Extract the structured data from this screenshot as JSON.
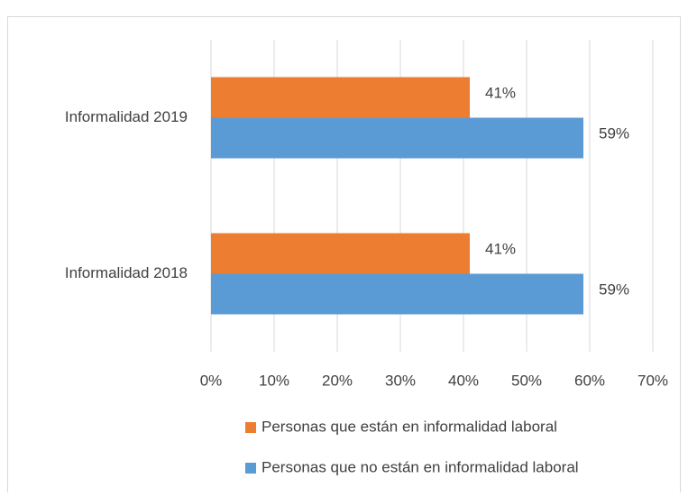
{
  "chart_data": {
    "type": "hbar",
    "categories": [
      "Informalidad 2019",
      "Informalidad 2018"
    ],
    "series": [
      {
        "name": "Personas que están en informalidad laboral",
        "color": "#ed7d31",
        "values": [
          41,
          41
        ],
        "value_labels": [
          "41%",
          "41%"
        ]
      },
      {
        "name": "Personas que no están en informalidad laboral",
        "color": "#5b9bd5",
        "values": [
          59,
          59
        ],
        "value_labels": [
          "59%",
          "59%"
        ]
      }
    ],
    "xlim": [
      0,
      70
    ],
    "xticks": [
      {
        "value": 0,
        "label": "0%"
      },
      {
        "value": 10,
        "label": "10%"
      },
      {
        "value": 20,
        "label": "20%"
      },
      {
        "value": 30,
        "label": "30%"
      },
      {
        "value": 40,
        "label": "40%"
      },
      {
        "value": 50,
        "label": "50%"
      },
      {
        "value": 60,
        "label": "60%"
      },
      {
        "value": 70,
        "label": "70%"
      }
    ],
    "grid": true,
    "legend": "bottom"
  }
}
